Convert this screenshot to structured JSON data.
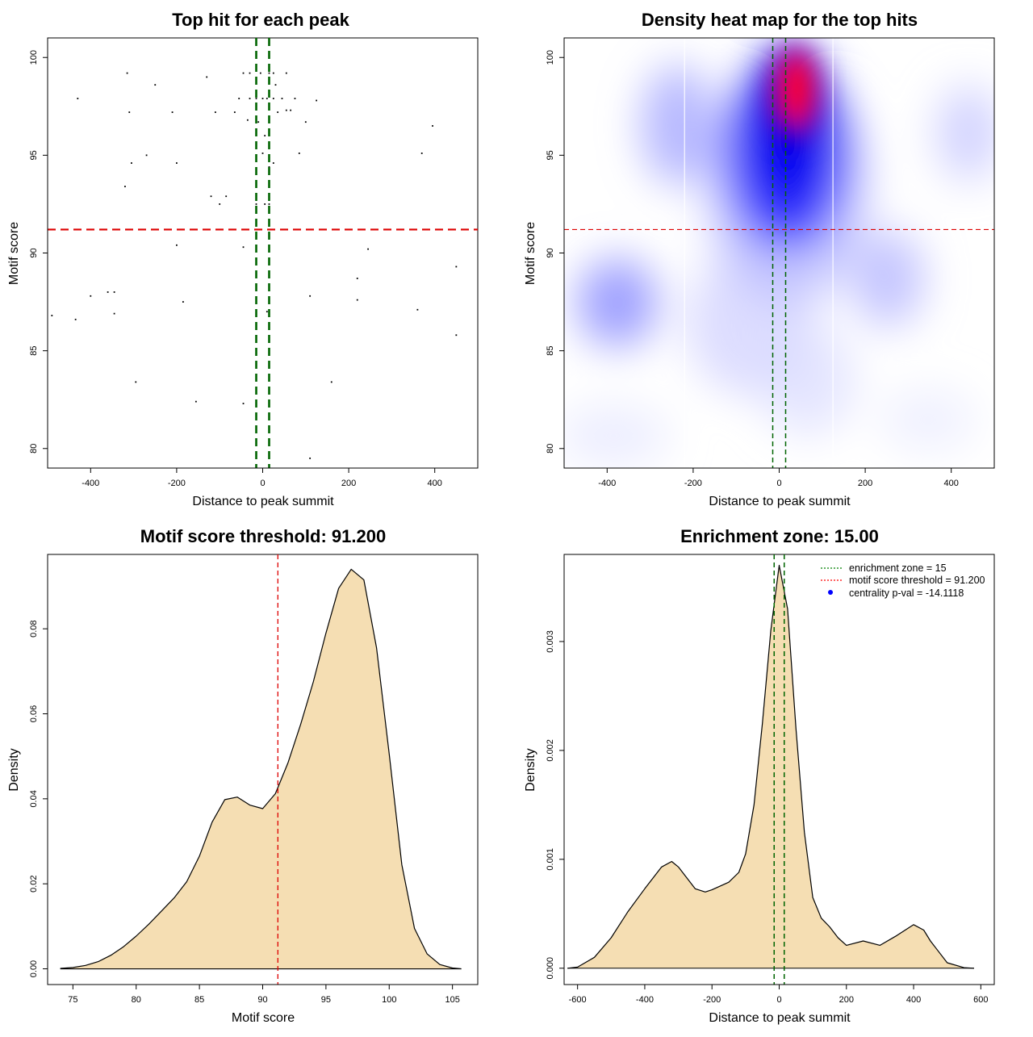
{
  "chart_data": [
    {
      "type": "scatter",
      "title": "Top hit for each peak",
      "xlabel": "Distance to peak summit",
      "ylabel": "Motif score",
      "xlim": [
        -500,
        500
      ],
      "ylim": [
        79,
        101
      ],
      "xticks": [
        -400,
        -200,
        0,
        200,
        400
      ],
      "yticks": [
        80,
        85,
        90,
        95,
        100
      ],
      "hline": 91.2,
      "hline_color": "#dd0000",
      "vlines": [
        -15,
        15
      ],
      "vline_color": "#006400",
      "points": [
        [
          -315,
          99.2
        ],
        [
          -250,
          98.6
        ],
        [
          -130,
          99.0
        ],
        [
          -45,
          99.2
        ],
        [
          -30,
          99.2
        ],
        [
          -5,
          99.2
        ],
        [
          15,
          99.2
        ],
        [
          25,
          99.2
        ],
        [
          55,
          99.2
        ],
        [
          -430,
          97.9
        ],
        [
          -310,
          97.2
        ],
        [
          -210,
          97.2
        ],
        [
          -110,
          97.2
        ],
        [
          -65,
          97.2
        ],
        [
          -55,
          97.9
        ],
        [
          -30,
          97.9
        ],
        [
          -15,
          97.9
        ],
        [
          0,
          97.9
        ],
        [
          10,
          97.9
        ],
        [
          25,
          97.9
        ],
        [
          35,
          97.2
        ],
        [
          45,
          97.9
        ],
        [
          55,
          97.3
        ],
        [
          65,
          97.3
        ],
        [
          75,
          97.9
        ],
        [
          125,
          97.8
        ],
        [
          30,
          98.6
        ],
        [
          -35,
          96.8
        ],
        [
          -10,
          96.7
        ],
        [
          100,
          96.7
        ],
        [
          5,
          96.0
        ],
        [
          15,
          96.0
        ],
        [
          395,
          96.5
        ],
        [
          -305,
          94.6
        ],
        [
          -270,
          95.0
        ],
        [
          -200,
          94.6
        ],
        [
          0,
          95.1
        ],
        [
          15,
          94.4
        ],
        [
          25,
          94.6
        ],
        [
          85,
          95.1
        ],
        [
          370,
          95.1
        ],
        [
          -320,
          93.4
        ],
        [
          -120,
          92.9
        ],
        [
          -100,
          92.5
        ],
        [
          -85,
          92.9
        ],
        [
          -15,
          92.5
        ],
        [
          5,
          92.5
        ],
        [
          15,
          92.5
        ],
        [
          -200,
          90.4
        ],
        [
          -45,
          90.3
        ],
        [
          245,
          90.2
        ],
        [
          450,
          89.3
        ],
        [
          220,
          88.7
        ],
        [
          -400,
          87.8
        ],
        [
          -360,
          88.0
        ],
        [
          -345,
          88.0
        ],
        [
          -185,
          87.5
        ],
        [
          110,
          87.8
        ],
        [
          220,
          87.6
        ],
        [
          360,
          87.1
        ],
        [
          -490,
          86.8
        ],
        [
          -435,
          86.6
        ],
        [
          -345,
          86.9
        ],
        [
          10,
          87.0
        ],
        [
          450,
          85.8
        ],
        [
          -295,
          83.4
        ],
        [
          160,
          83.4
        ],
        [
          -155,
          82.4
        ],
        [
          -45,
          82.3
        ],
        [
          110,
          79.5
        ]
      ]
    },
    {
      "type": "heatmap",
      "title": "Density heat map for the top hits",
      "xlabel": "Distance to peak summit",
      "ylabel": "Motif score",
      "xlim": [
        -500,
        500
      ],
      "ylim": [
        79,
        101
      ],
      "xticks": [
        -400,
        -200,
        0,
        200,
        400
      ],
      "yticks": [
        80,
        85,
        90,
        95,
        100
      ],
      "hline": 91.2,
      "hline_color": "#dd0000",
      "vlines": [
        -15,
        15
      ],
      "vline_color": "#006400",
      "grid_vlines": [
        -220,
        125
      ],
      "colors": [
        "#ffffff",
        "#0000ff",
        "#ff0000"
      ]
    },
    {
      "type": "area",
      "title": "Motif score threshold: 91.200",
      "xlabel": "Motif score",
      "ylabel": "Density",
      "xlim": [
        73,
        107
      ],
      "ylim": [
        -0.0037,
        0.0975
      ],
      "xticks": [
        75,
        80,
        85,
        90,
        95,
        100,
        105
      ],
      "yticks": [
        0.0,
        0.02,
        0.04,
        0.06,
        0.08
      ],
      "ytick_labels": [
        "0.00",
        "0.02",
        "0.04",
        "0.06",
        "0.08"
      ],
      "fill_color": "#f5deb3",
      "vline": 91.2,
      "vline_color": "#dd0000",
      "x": [
        74,
        75,
        76,
        77,
        78,
        79,
        80,
        81,
        82,
        83,
        84,
        85,
        86,
        87,
        88,
        89,
        90,
        91,
        92,
        93,
        94,
        95,
        96,
        97,
        98,
        99,
        100,
        101,
        102,
        103,
        104,
        105,
        105.7
      ],
      "y": [
        0.0001,
        0.0003,
        0.0008,
        0.0017,
        0.0032,
        0.0052,
        0.0077,
        0.0105,
        0.0136,
        0.0167,
        0.0205,
        0.0265,
        0.0345,
        0.0398,
        0.0404,
        0.0385,
        0.0377,
        0.0412,
        0.0485,
        0.0575,
        0.0675,
        0.079,
        0.0895,
        0.094,
        0.0915,
        0.0755,
        0.0505,
        0.0245,
        0.0095,
        0.0035,
        0.001,
        0.0002,
        0.0
      ]
    },
    {
      "type": "area",
      "title": "Enrichment zone: 15.00",
      "xlabel": "Distance to peak summit",
      "ylabel": "Density",
      "xlim": [
        -640,
        640
      ],
      "ylim": [
        -0.00015,
        0.0038
      ],
      "xticks": [
        -600,
        -400,
        -200,
        0,
        200,
        400,
        600
      ],
      "yticks": [
        0.0,
        0.001,
        0.002,
        0.003
      ],
      "ytick_labels": [
        "0.000",
        "0.001",
        "0.002",
        "0.003"
      ],
      "fill_color": "#f5deb3",
      "vlines": [
        -15,
        15
      ],
      "vline_color": "#006400",
      "x": [
        -630,
        -600,
        -550,
        -500,
        -450,
        -400,
        -350,
        -320,
        -300,
        -250,
        -220,
        -200,
        -150,
        -120,
        -100,
        -75,
        -50,
        -25,
        0,
        25,
        50,
        75,
        100,
        125,
        150,
        175,
        200,
        250,
        300,
        350,
        400,
        430,
        450,
        500,
        550,
        580
      ],
      "y": [
        0.0,
        1e-05,
        0.0001,
        0.00028,
        0.00052,
        0.00073,
        0.00093,
        0.00098,
        0.00093,
        0.00073,
        0.0007,
        0.00072,
        0.00079,
        0.00088,
        0.00105,
        0.0015,
        0.00225,
        0.0031,
        0.0037,
        0.0033,
        0.0022,
        0.00125,
        0.00065,
        0.00046,
        0.00038,
        0.00028,
        0.00021,
        0.00025,
        0.00021,
        0.0003,
        0.0004,
        0.00035,
        0.00025,
        5e-05,
        5e-06,
        0.0
      ]
    }
  ],
  "legend": {
    "items": [
      {
        "label": "enrichment zone = 15",
        "color": "#008000",
        "style": "dotted-line"
      },
      {
        "label": "motif score threshold = 91.200",
        "color": "#ff0000",
        "style": "dotted-line"
      },
      {
        "label": "centrality p-val = -14.1118",
        "color": "#0000ff",
        "style": "dot"
      }
    ],
    "position": "top-right"
  }
}
